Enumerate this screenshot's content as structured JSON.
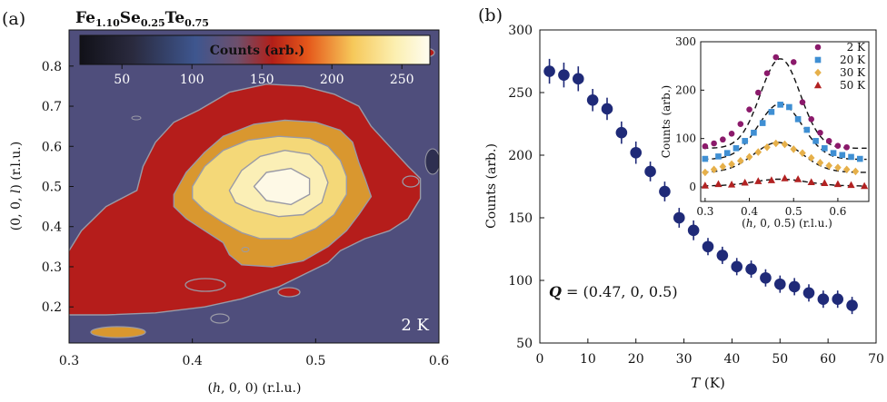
{
  "figure": {
    "panel_a_label": "(a)",
    "panel_b_label": "(b)"
  },
  "colors": {
    "background_purple": "#4f4e7c",
    "level_red": "#b51d1b",
    "level_orange": "#d9972f",
    "level_yellow": "#f4d878",
    "level_lightyellow": "#fbefb6",
    "level_white": "#fef9e6",
    "contour_line": "#9a9aa6",
    "marker_main": "#1f2a78",
    "marker_2K": "#8b1a6b",
    "marker_20K": "#3f8fd3",
    "marker_30K": "#e6b04a",
    "marker_50K": "#b22222"
  },
  "chart_data": [
    {
      "type": "heatmap",
      "title": {
        "base": "Fe",
        "sub1": "1.10",
        "el2": "Se",
        "sub2": "0.25",
        "el3": "Te",
        "sub3": "0.75"
      },
      "xlabel": {
        "pre": "(",
        "var": "h",
        "post": ", 0, 0) (r.l.u.)"
      },
      "ylabel": {
        "pre": "(0, 0, ",
        "var": "l",
        "post": ") (r.l.u.)"
      },
      "xlim": [
        0.3,
        0.6
      ],
      "ylim": [
        0.11,
        0.89
      ],
      "x_ticks": [
        0.3,
        0.4,
        0.5,
        0.6
      ],
      "x_tick_labels": [
        "0.3",
        "0.4",
        "0.5",
        "0.6"
      ],
      "y_ticks": [
        0.2,
        0.3,
        0.4,
        0.5,
        0.6,
        0.7,
        0.8
      ],
      "y_tick_labels": [
        "0.2",
        "0.3",
        "0.4",
        "0.5",
        "0.6",
        "0.7",
        "0.8"
      ],
      "colorbar": {
        "label": "Counts (arb.)",
        "range": [
          20,
          270
        ],
        "ticks": [
          50,
          100,
          150,
          200,
          250
        ],
        "tick_labels": [
          "50",
          "100",
          "150",
          "200",
          "250"
        ]
      },
      "temperature_label": "2 K",
      "contour_levels": [
        {
          "name": "red",
          "level": 120,
          "points": [
            [
              0.3,
              0.34
            ],
            [
              0.31,
              0.39
            ],
            [
              0.33,
              0.45
            ],
            [
              0.355,
              0.49
            ],
            [
              0.36,
              0.55
            ],
            [
              0.37,
              0.61
            ],
            [
              0.385,
              0.66
            ],
            [
              0.405,
              0.69
            ],
            [
              0.43,
              0.735
            ],
            [
              0.46,
              0.755
            ],
            [
              0.49,
              0.75
            ],
            [
              0.515,
              0.73
            ],
            [
              0.535,
              0.7
            ],
            [
              0.545,
              0.65
            ],
            [
              0.56,
              0.6
            ],
            [
              0.575,
              0.55
            ],
            [
              0.585,
              0.52
            ],
            [
              0.585,
              0.47
            ],
            [
              0.575,
              0.42
            ],
            [
              0.56,
              0.39
            ],
            [
              0.54,
              0.37
            ],
            [
              0.52,
              0.34
            ],
            [
              0.51,
              0.31
            ],
            [
              0.49,
              0.28
            ],
            [
              0.47,
              0.25
            ],
            [
              0.44,
              0.22
            ],
            [
              0.41,
              0.2
            ],
            [
              0.37,
              0.185
            ],
            [
              0.33,
              0.18
            ],
            [
              0.3,
              0.18
            ]
          ]
        },
        {
          "name": "orange",
          "level": 150,
          "points": [
            [
              0.385,
              0.48
            ],
            [
              0.395,
              0.535
            ],
            [
              0.41,
              0.585
            ],
            [
              0.425,
              0.625
            ],
            [
              0.45,
              0.655
            ],
            [
              0.475,
              0.665
            ],
            [
              0.5,
              0.66
            ],
            [
              0.52,
              0.64
            ],
            [
              0.53,
              0.61
            ],
            [
              0.535,
              0.56
            ],
            [
              0.54,
              0.52
            ],
            [
              0.545,
              0.475
            ],
            [
              0.535,
              0.43
            ],
            [
              0.525,
              0.39
            ],
            [
              0.51,
              0.35
            ],
            [
              0.49,
              0.315
            ],
            [
              0.465,
              0.3
            ],
            [
              0.44,
              0.305
            ],
            [
              0.43,
              0.33
            ],
            [
              0.425,
              0.36
            ],
            [
              0.41,
              0.39
            ],
            [
              0.395,
              0.42
            ],
            [
              0.385,
              0.45
            ]
          ]
        },
        {
          "name": "yellow",
          "level": 180,
          "points": [
            [
              0.4,
              0.5
            ],
            [
              0.41,
              0.55
            ],
            [
              0.425,
              0.59
            ],
            [
              0.445,
              0.615
            ],
            [
              0.47,
              0.625
            ],
            [
              0.495,
              0.62
            ],
            [
              0.51,
              0.6
            ],
            [
              0.52,
              0.565
            ],
            [
              0.525,
              0.525
            ],
            [
              0.525,
              0.48
            ],
            [
              0.515,
              0.43
            ],
            [
              0.5,
              0.395
            ],
            [
              0.48,
              0.37
            ],
            [
              0.455,
              0.37
            ],
            [
              0.44,
              0.385
            ],
            [
              0.425,
              0.41
            ],
            [
              0.41,
              0.44
            ],
            [
              0.4,
              0.47
            ]
          ]
        },
        {
          "name": "lightyellow",
          "level": 210,
          "points": [
            [
              0.43,
              0.49
            ],
            [
              0.44,
              0.54
            ],
            [
              0.455,
              0.575
            ],
            [
              0.475,
              0.59
            ],
            [
              0.495,
              0.58
            ],
            [
              0.505,
              0.55
            ],
            [
              0.51,
              0.51
            ],
            [
              0.505,
              0.46
            ],
            [
              0.49,
              0.43
            ],
            [
              0.47,
              0.425
            ],
            [
              0.45,
              0.44
            ],
            [
              0.435,
              0.46
            ]
          ]
        },
        {
          "name": "white",
          "level": 240,
          "points": [
            [
              0.45,
              0.5
            ],
            [
              0.46,
              0.535
            ],
            [
              0.48,
              0.545
            ],
            [
              0.495,
              0.52
            ],
            [
              0.495,
              0.48
            ],
            [
              0.48,
              0.455
            ],
            [
              0.46,
              0.465
            ]
          ]
        }
      ]
    },
    {
      "type": "scatter",
      "xlabel": {
        "var": "T",
        "post": " (K)"
      },
      "ylabel": "Counts (arb.)",
      "xlim": [
        0,
        70
      ],
      "ylim": [
        50,
        300
      ],
      "x_ticks": [
        0,
        10,
        20,
        30,
        40,
        50,
        60,
        70
      ],
      "x_tick_labels": [
        "0",
        "10",
        "20",
        "30",
        "40",
        "50",
        "60",
        "70"
      ],
      "y_ticks": [
        50,
        100,
        150,
        200,
        250,
        300
      ],
      "y_tick_labels": [
        "50",
        "100",
        "150",
        "200",
        "250",
        "300"
      ],
      "annotation": {
        "var": "Q",
        "post": " = (0.47, 0, 0.5)"
      },
      "x": [
        2,
        5,
        8,
        11,
        14,
        17,
        20,
        23,
        26,
        29,
        32,
        35,
        38,
        41,
        44,
        47,
        50,
        53,
        56,
        59,
        62,
        65
      ],
      "y": [
        267,
        264,
        261,
        244,
        237,
        218,
        202,
        187,
        171,
        150,
        140,
        127,
        120,
        111,
        109,
        102,
        97,
        95,
        90,
        85,
        85,
        80
      ],
      "yerr": [
        7,
        7,
        7,
        6,
        6,
        6,
        6,
        5,
        5,
        5,
        5,
        4,
        4,
        4,
        4,
        4,
        4,
        4,
        4,
        4,
        4,
        4
      ]
    },
    {
      "type": "scatter",
      "inset": true,
      "xlabel": {
        "pre": "(",
        "var": "h",
        "post": ", 0, 0.5) (r.l.u.)"
      },
      "ylabel": "Counts (arb.)",
      "xlim": [
        0.29,
        0.67
      ],
      "ylim": [
        -30,
        300
      ],
      "x_ticks": [
        0.3,
        0.4,
        0.5,
        0.6
      ],
      "x_tick_labels": [
        "0.3",
        "0.4",
        "0.5",
        "0.6"
      ],
      "y_ticks": [
        0,
        100,
        200,
        300
      ],
      "y_tick_labels": [
        "0",
        "100",
        "200",
        "300"
      ],
      "series": [
        {
          "name": "2 K",
          "marker": "circle",
          "offset": 80,
          "amplitude": 185,
          "center": 0.47,
          "sigma": 0.045,
          "x": [
            0.3,
            0.32,
            0.34,
            0.36,
            0.38,
            0.4,
            0.42,
            0.44,
            0.46,
            0.5,
            0.52,
            0.54,
            0.56,
            0.58,
            0.6,
            0.62
          ],
          "y": [
            84,
            90,
            98,
            110,
            130,
            160,
            195,
            235,
            268,
            258,
            175,
            140,
            112,
            95,
            85,
            82
          ]
        },
        {
          "name": "20 K",
          "marker": "square",
          "offset": 57,
          "amplitude": 115,
          "center": 0.47,
          "sigma": 0.05,
          "x": [
            0.3,
            0.33,
            0.35,
            0.37,
            0.39,
            0.41,
            0.43,
            0.45,
            0.47,
            0.49,
            0.51,
            0.53,
            0.55,
            0.57,
            0.59,
            0.61,
            0.63,
            0.65
          ],
          "y": [
            58,
            63,
            70,
            80,
            95,
            112,
            132,
            155,
            170,
            165,
            140,
            118,
            95,
            80,
            70,
            66,
            62,
            58
          ]
        },
        {
          "name": "30 K",
          "marker": "diamond",
          "offset": 30,
          "amplitude": 62,
          "center": 0.465,
          "sigma": 0.055,
          "x": [
            0.3,
            0.32,
            0.34,
            0.36,
            0.38,
            0.4,
            0.42,
            0.44,
            0.46,
            0.48,
            0.5,
            0.52,
            0.54,
            0.56,
            0.58,
            0.6,
            0.62,
            0.64
          ],
          "y": [
            30,
            36,
            42,
            47,
            54,
            62,
            72,
            82,
            90,
            88,
            78,
            70,
            60,
            50,
            44,
            40,
            36,
            32
          ]
        },
        {
          "name": "50 K",
          "marker": "triangle",
          "offset": 2,
          "amplitude": 14,
          "center": 0.47,
          "sigma": 0.06,
          "x": [
            0.3,
            0.33,
            0.36,
            0.39,
            0.42,
            0.45,
            0.48,
            0.51,
            0.54,
            0.57,
            0.6,
            0.63,
            0.66
          ],
          "y": [
            3,
            6,
            5,
            9,
            12,
            14,
            18,
            16,
            10,
            8,
            6,
            4,
            2
          ]
        }
      ],
      "legend_position": "top-right"
    }
  ]
}
